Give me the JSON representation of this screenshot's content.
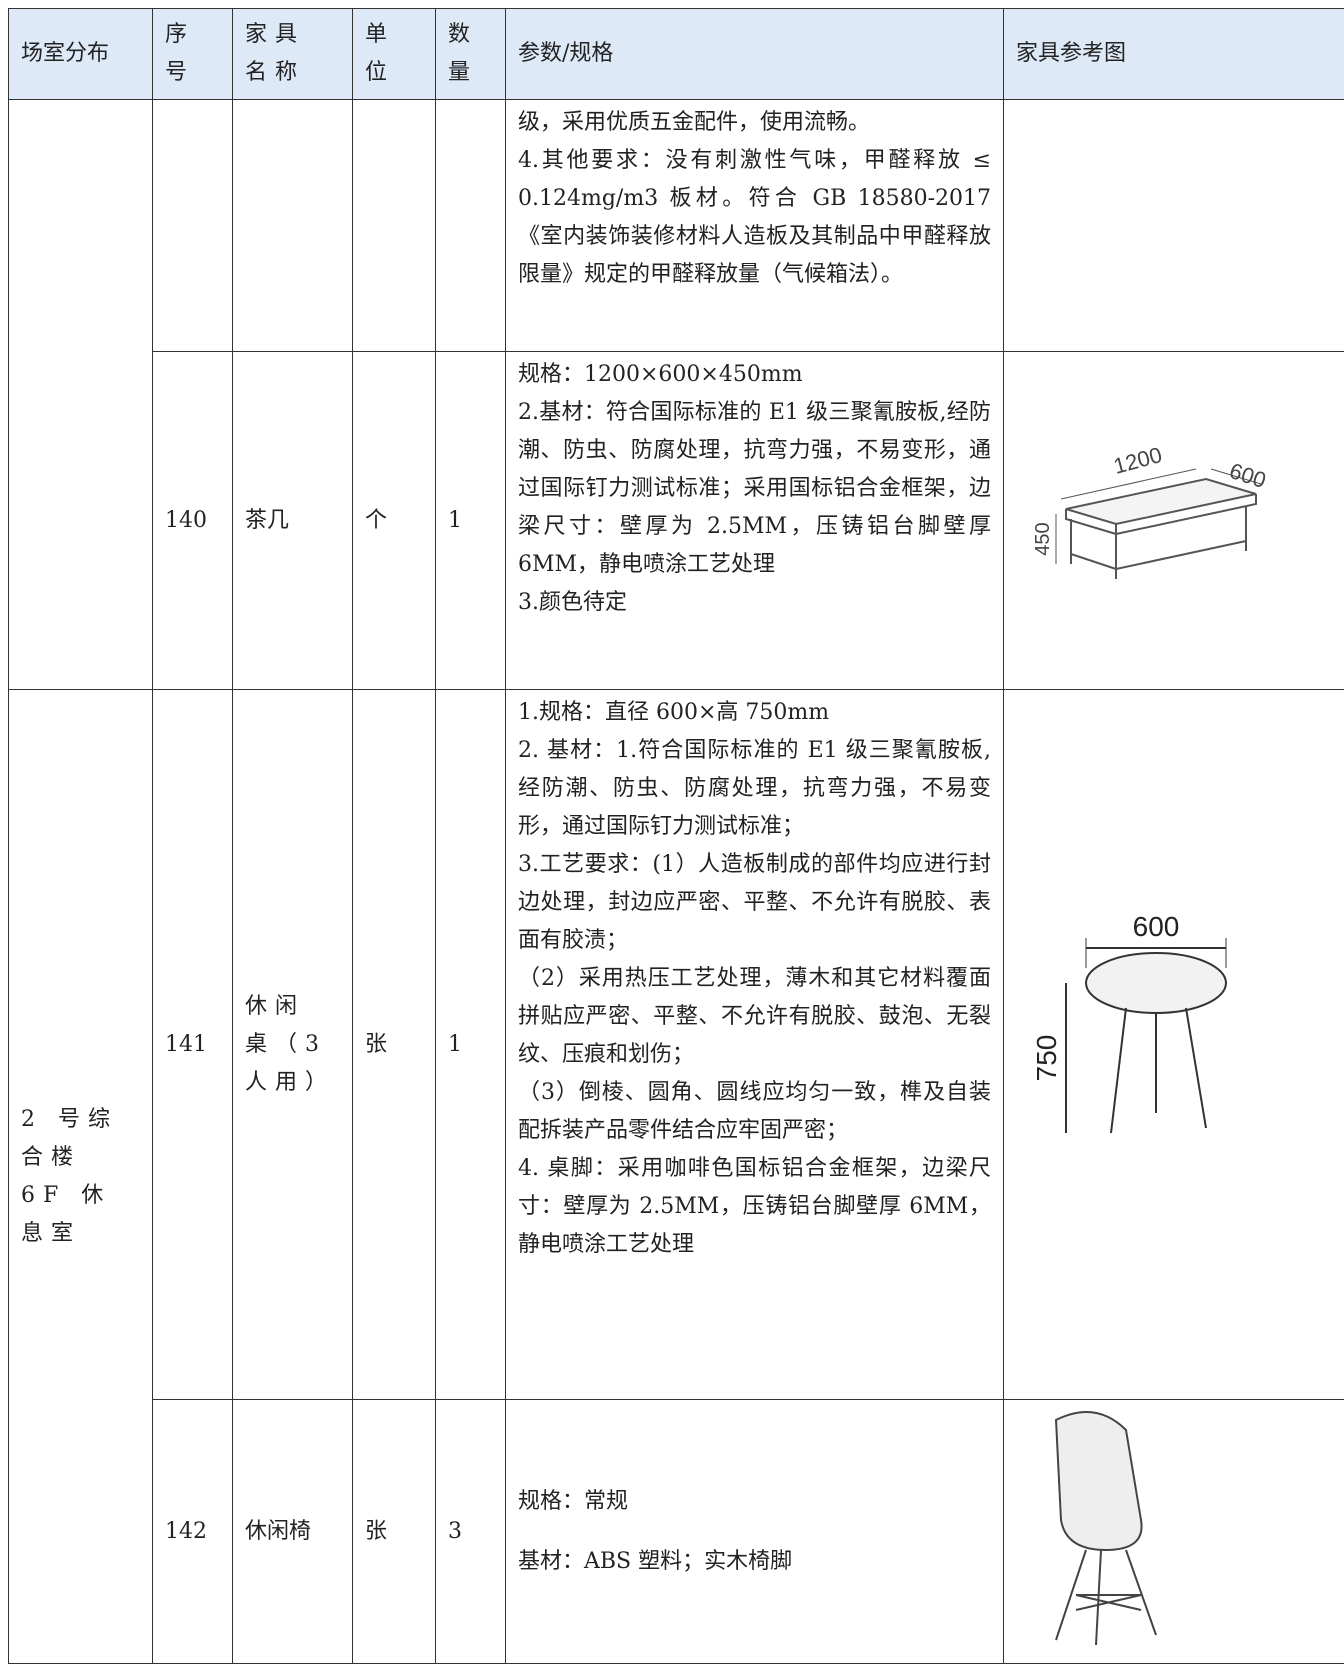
{
  "table": {
    "header": [
      "场室分布",
      "序号",
      "家具名称",
      "单位",
      "数量",
      "参数/规格",
      "家具参考图"
    ],
    "rows": [
      {
        "spec": [
          "级，采用优质五金配件，使用流畅。",
          "4.其他要求：没有刺激性气味，甲醛释放 ≤ 0.124mg/m3 板材。符合 GB 18580-2017《室内装饰装修材料人造板及其制品中甲醛释放限量》规定的甲醛释放量（气候箱法）。"
        ]
      },
      {
        "no": "140",
        "name": "茶几",
        "unit": "个",
        "qty": "1",
        "spec": [
          "规格：1200×600×450mm",
          "2.基材：符合国际标准的 E1 级三聚氰胺板,经防潮、防虫、防腐处理，抗弯力强，不易变形，通过国际钉力测试标准；采用国标铝合金框架，边梁尺寸：壁厚为 2.5MM，压铸铝台脚壁厚 6MM，静电喷涂工艺处理",
          "3.颜色待定"
        ],
        "figure_labels": [
          "1200",
          "600",
          "450"
        ]
      },
      {
        "room": "2 号综合楼 6F 休息室",
        "no": "141",
        "name": "休闲桌（3 人用）",
        "unit": "张",
        "qty": "1",
        "spec": [
          "1.规格：直径 600×高 750mm",
          "2. 基材：1.符合国际标准的 E1 级三聚氰胺板,经防潮、防虫、防腐处理，抗弯力强，不易变形，通过国际钉力测试标准；",
          "3.工艺要求：(1）人造板制成的部件均应进行封边处理，封边应严密、平整、不允许有脱胶、表面有胶渍；",
          "（2）采用热压工艺处理，薄木和其它材料覆面拼贴应严密、平整、不允许有脱胶、鼓泡、无裂纹、压痕和划伤；",
          "（3）倒棱、圆角、圆线应均匀一致，榫及自装配拆装产品零件结合应牢固严密；",
          "4. 桌脚：采用咖啡色国标铝合金框架，边梁尺寸：壁厚为 2.5MM，压铸铝台脚壁厚 6MM，静电喷涂工艺处理"
        ],
        "figure_labels": [
          "600",
          "750"
        ]
      },
      {
        "no": "142",
        "name": "休闲椅",
        "unit": "张",
        "qty": "3",
        "spec": [
          "规格：常规",
          "基材：ABS 塑料；实木椅脚"
        ]
      }
    ]
  }
}
